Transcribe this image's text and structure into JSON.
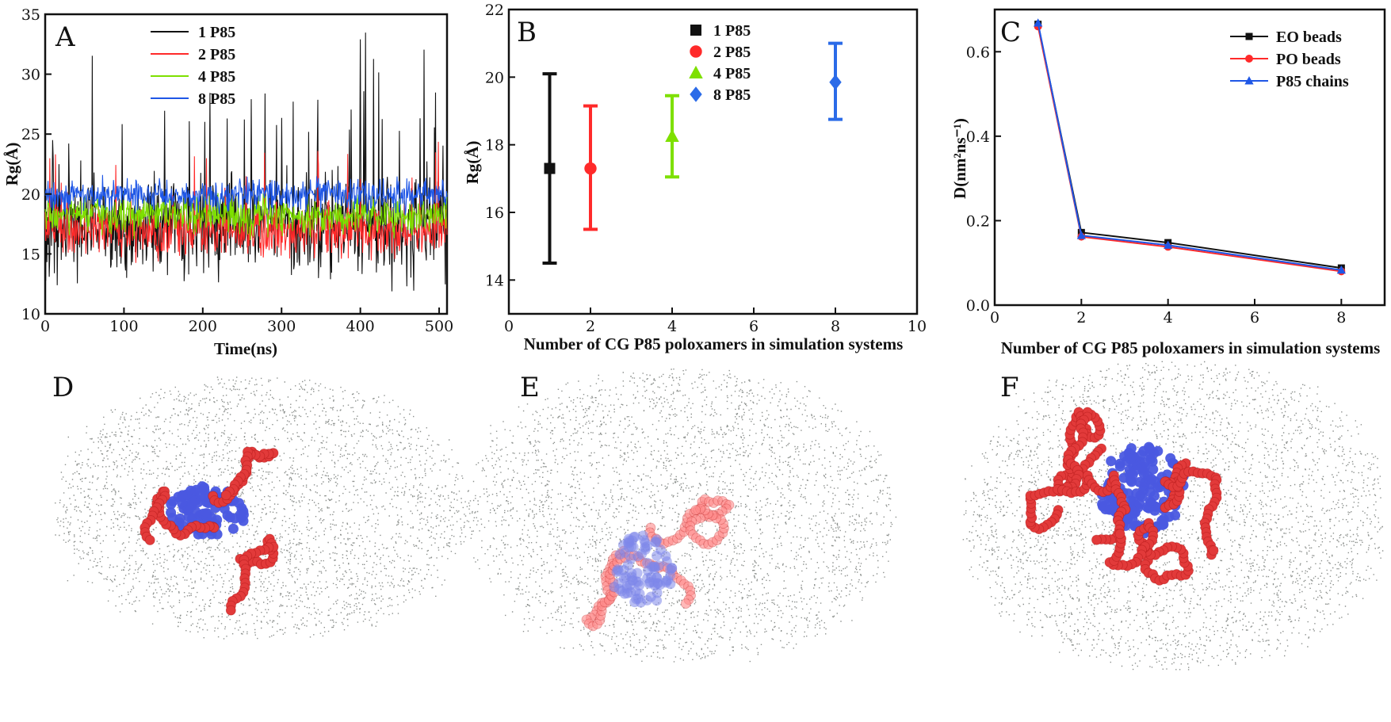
{
  "colors": {
    "black": "#111111",
    "red": "#ff2a2a",
    "green": "#7ee000",
    "blue": "#1f57e6",
    "blueMarker": "#2b6be8"
  },
  "panel_labels": [
    "A",
    "B",
    "C",
    "D",
    "E",
    "F"
  ],
  "chart_data": [
    {
      "type": "line",
      "panel": "A",
      "xlabel": "Time(ns)",
      "ylabel": "Rg(Å)",
      "xlim": [
        0,
        510
      ],
      "ylim": [
        10,
        35
      ],
      "xticks": [
        "0",
        "100",
        "200",
        "300",
        "400",
        "500"
      ],
      "yticks": [
        "10",
        "15",
        "20",
        "25",
        "30",
        "35"
      ],
      "legend_position": "top-center",
      "series": [
        {
          "name": "1 P85",
          "color": "#111111",
          "mean": 17.3,
          "spread": 3.0
        },
        {
          "name": "2 P85",
          "color": "#ff2a2a",
          "mean": 17.0,
          "spread": 1.6
        },
        {
          "name": "4 P85",
          "color": "#7ee000",
          "mean": 18.2,
          "spread": 1.2
        },
        {
          "name": "8 P85",
          "color": "#1f57e6",
          "mean": 19.9,
          "spread": 1.0
        }
      ]
    },
    {
      "type": "scatter",
      "panel": "B",
      "xlabel": "Number of CG P85 poloxamers in simulation systems",
      "ylabel": "Rg(Å)",
      "xlim": [
        0,
        10
      ],
      "ylim": [
        13,
        22
      ],
      "xticks": [
        "0",
        "2",
        "4",
        "6",
        "8",
        "10"
      ],
      "yticks": [
        "14",
        "16",
        "18",
        "20",
        "22"
      ],
      "legend_position": "top-right",
      "series": [
        {
          "name": "1 P85",
          "x": 1,
          "y": 17.3,
          "err_low": 14.5,
          "err_high": 20.1,
          "color": "#111111",
          "marker": "square"
        },
        {
          "name": "2 P85",
          "x": 2,
          "y": 17.3,
          "err_low": 15.5,
          "err_high": 19.15,
          "color": "#ff2a2a",
          "marker": "circle"
        },
        {
          "name": "4 P85",
          "x": 4,
          "y": 18.25,
          "err_low": 17.05,
          "err_high": 19.45,
          "color": "#7ee000",
          "marker": "triangle"
        },
        {
          "name": "8 P85",
          "x": 8,
          "y": 19.85,
          "err_low": 18.75,
          "err_high": 21.0,
          "color": "#2b6be8",
          "marker": "diamond"
        }
      ]
    },
    {
      "type": "line",
      "panel": "C",
      "xlabel": "Number of CG P85 poloxamers in simulation systems",
      "ylabel": "D(nm²ns⁻¹)",
      "xlim": [
        0,
        9
      ],
      "ylim": [
        0,
        0.7
      ],
      "xticks": [
        "0",
        "2",
        "4",
        "6",
        "8"
      ],
      "yticks": [
        "0.0",
        "0.2",
        "0.4",
        "0.6"
      ],
      "legend_position": "top-right",
      "x": [
        1,
        2,
        4,
        8
      ],
      "series": [
        {
          "name": "EO beads",
          "values": [
            0.665,
            0.172,
            0.148,
            0.088
          ],
          "color": "#111111",
          "marker": "square"
        },
        {
          "name": "PO beads",
          "values": [
            0.66,
            0.162,
            0.138,
            0.08
          ],
          "color": "#ff2a2a",
          "marker": "circle"
        },
        {
          "name": "P85 chains",
          "values": [
            0.668,
            0.165,
            0.142,
            0.083
          ],
          "color": "#1f57e6",
          "marker": "triangle"
        }
      ]
    }
  ]
}
